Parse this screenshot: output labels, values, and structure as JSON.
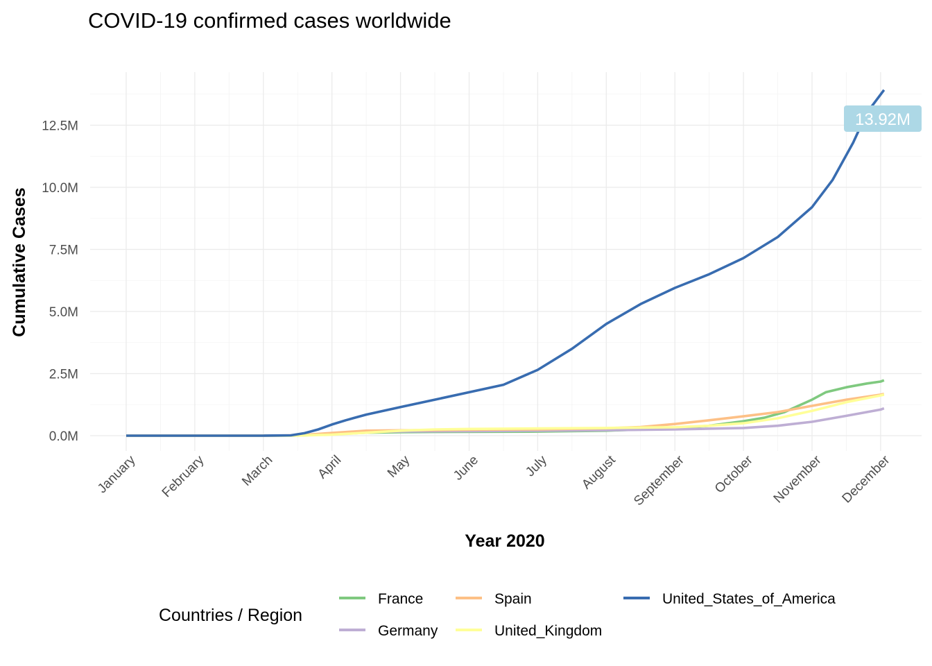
{
  "chart_data": {
    "type": "line",
    "title": "COVID-19 confirmed cases worldwide",
    "xlabel": "Year 2020",
    "ylabel": "Cumulative Cases",
    "legend_title": "Countries / Region",
    "legend_position": "bottom",
    "grid": true,
    "xlim": [
      0,
      11.3
    ],
    "ylim": [
      0,
      14000000
    ],
    "x_ticks": [
      0,
      1,
      2,
      3,
      4,
      5,
      6,
      7,
      8,
      9,
      10,
      11
    ],
    "x_tick_labels": [
      "January",
      "February",
      "March",
      "April",
      "May",
      "June",
      "July",
      "August",
      "September",
      "October",
      "November",
      "December"
    ],
    "y_ticks": [
      0,
      2500000,
      5000000,
      7500000,
      10000000,
      12500000
    ],
    "y_tick_labels": [
      "0.0M",
      "2.5M",
      "5.0M",
      "7.5M",
      "10.0M",
      "12.5M"
    ],
    "x_unit_note": "x = months since January 1, 2020",
    "annotation": {
      "text": "13.92M",
      "x": 11.0,
      "y": 13920000,
      "color": "#add8e6"
    },
    "series": [
      {
        "name": "France",
        "color": "#7fc97f",
        "points": [
          [
            0,
            0
          ],
          [
            2,
            0
          ],
          [
            2.5,
            5000
          ],
          [
            3,
            60000
          ],
          [
            3.5,
            120000
          ],
          [
            4,
            140000
          ],
          [
            4.5,
            150000
          ],
          [
            5,
            155000
          ],
          [
            6,
            165000
          ],
          [
            7,
            200000
          ],
          [
            7.5,
            250000
          ],
          [
            8,
            300000
          ],
          [
            8.5,
            400000
          ],
          [
            9,
            580000
          ],
          [
            9.3,
            720000
          ],
          [
            9.6,
            950000
          ],
          [
            9.8,
            1200000
          ],
          [
            10,
            1450000
          ],
          [
            10.2,
            1750000
          ],
          [
            10.5,
            1950000
          ],
          [
            10.8,
            2100000
          ],
          [
            11,
            2180000
          ],
          [
            11.05,
            2230000
          ]
        ]
      },
      {
        "name": "Germany",
        "color": "#beaed4",
        "points": [
          [
            0,
            0
          ],
          [
            2,
            0
          ],
          [
            2.5,
            10000
          ],
          [
            3,
            70000
          ],
          [
            3.5,
            150000
          ],
          [
            4,
            170000
          ],
          [
            5,
            185000
          ],
          [
            6,
            200000
          ],
          [
            7,
            220000
          ],
          [
            8,
            250000
          ],
          [
            9,
            310000
          ],
          [
            9.5,
            400000
          ],
          [
            10,
            560000
          ],
          [
            10.5,
            800000
          ],
          [
            11,
            1050000
          ],
          [
            11.05,
            1100000
          ]
        ]
      },
      {
        "name": "Spain",
        "color": "#fdc086",
        "points": [
          [
            0,
            0
          ],
          [
            2,
            0
          ],
          [
            2.5,
            10000
          ],
          [
            3,
            110000
          ],
          [
            3.5,
            200000
          ],
          [
            4,
            215000
          ],
          [
            5,
            240000
          ],
          [
            6,
            255000
          ],
          [
            7,
            300000
          ],
          [
            7.5,
            350000
          ],
          [
            8,
            470000
          ],
          [
            8.5,
            620000
          ],
          [
            9,
            780000
          ],
          [
            9.5,
            950000
          ],
          [
            10,
            1200000
          ],
          [
            10.5,
            1450000
          ],
          [
            11,
            1650000
          ],
          [
            11.05,
            1680000
          ]
        ]
      },
      {
        "name": "United_Kingdom",
        "color": "#ffff99",
        "points": [
          [
            0,
            0
          ],
          [
            2,
            0
          ],
          [
            2.5,
            5000
          ],
          [
            3,
            40000
          ],
          [
            3.5,
            120000
          ],
          [
            4,
            200000
          ],
          [
            4.5,
            250000
          ],
          [
            5,
            270000
          ],
          [
            6,
            290000
          ],
          [
            7,
            310000
          ],
          [
            8,
            340000
          ],
          [
            8.5,
            400000
          ],
          [
            9,
            500000
          ],
          [
            9.5,
            700000
          ],
          [
            10,
            1000000
          ],
          [
            10.5,
            1350000
          ],
          [
            11,
            1620000
          ],
          [
            11.05,
            1650000
          ]
        ]
      },
      {
        "name": "United_States_of_America",
        "color": "#386cb0",
        "points": [
          [
            0,
            0
          ],
          [
            2,
            0
          ],
          [
            2.4,
            15000
          ],
          [
            2.6,
            100000
          ],
          [
            2.8,
            250000
          ],
          [
            3,
            450000
          ],
          [
            3.2,
            620000
          ],
          [
            3.5,
            850000
          ],
          [
            4,
            1150000
          ],
          [
            4.5,
            1450000
          ],
          [
            5,
            1750000
          ],
          [
            5.5,
            2050000
          ],
          [
            6,
            2650000
          ],
          [
            6.5,
            3500000
          ],
          [
            7,
            4500000
          ],
          [
            7.5,
            5300000
          ],
          [
            8,
            5950000
          ],
          [
            8.5,
            6500000
          ],
          [
            9,
            7150000
          ],
          [
            9.5,
            8000000
          ],
          [
            10,
            9200000
          ],
          [
            10.3,
            10300000
          ],
          [
            10.6,
            11800000
          ],
          [
            10.8,
            13000000
          ],
          [
            11.05,
            13920000
          ]
        ]
      }
    ]
  }
}
